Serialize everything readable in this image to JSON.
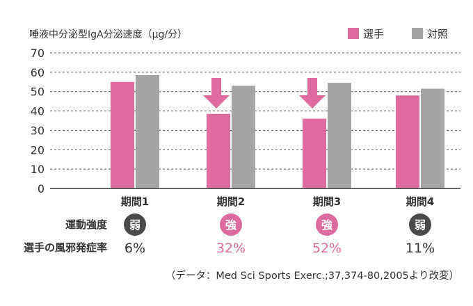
{
  "chart_data": {
    "type": "bar",
    "ylabel": "唾液中分泌型IgA分泌速度（μg/分）",
    "ylim": [
      0,
      70
    ],
    "yticks": [
      0,
      10,
      20,
      30,
      40,
      50,
      60,
      70
    ],
    "grid": true,
    "legend_position": "top-right",
    "categories": [
      "期間1",
      "期間2",
      "期間3",
      "期間4"
    ],
    "series": [
      {
        "name": "選手",
        "color": "#de6b9e",
        "values": [
          55,
          38.5,
          36,
          48
        ]
      },
      {
        "name": "対照",
        "color": "#a5a5a5",
        "values": [
          58.5,
          53,
          54.5,
          51.5
        ]
      }
    ],
    "arrows_over_categories": [
      "期間2",
      "期間3"
    ],
    "arrow_color": "#de6b9e"
  },
  "rows": {
    "intensity_label": "運動強度",
    "intensity": [
      {
        "text": "弱",
        "color": "#4a4a4a"
      },
      {
        "text": "強",
        "color": "#de6b9e"
      },
      {
        "text": "強",
        "color": "#de6b9e"
      },
      {
        "text": "弱",
        "color": "#4a4a4a"
      }
    ],
    "cold_rate_label": "選手の風邪発症率",
    "cold_rate": [
      {
        "text": "6%",
        "color": "#333333"
      },
      {
        "text": "32%",
        "color": "#de6b9e"
      },
      {
        "text": "52%",
        "color": "#de6b9e"
      },
      {
        "text": "11%",
        "color": "#333333"
      }
    ]
  },
  "source": "（データ：Med Sci Sports Exerc.;37,374-80,2005より改変）"
}
